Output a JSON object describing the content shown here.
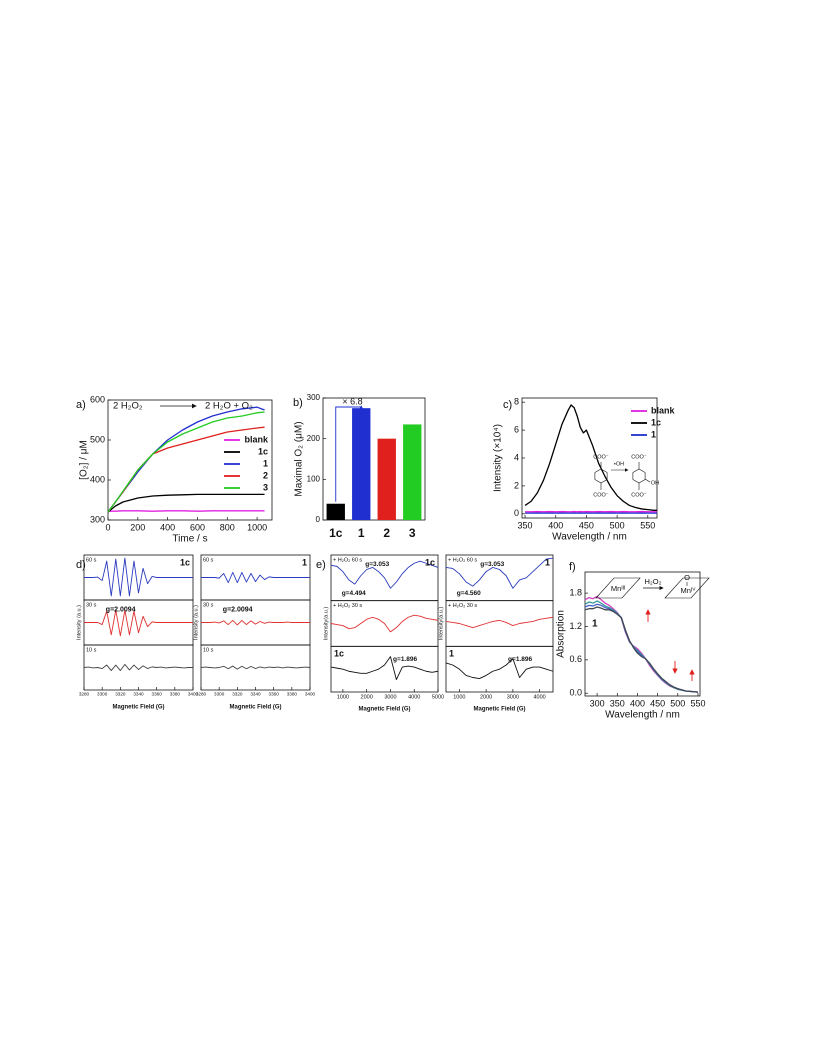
{
  "chart_data": [
    {
      "type": "line",
      "panel_label": "a)",
      "reaction_left": "2 H₂O₂",
      "reaction_right": "2 H₂O + O₂",
      "xlabel": "Time / s",
      "ylabel": "[O₂] / μM",
      "x": [
        0,
        50,
        100,
        200,
        300,
        400,
        500,
        600,
        700,
        800,
        900,
        1000,
        1050
      ],
      "xlim": [
        0,
        1100
      ],
      "xticks": [
        0,
        200,
        400,
        600,
        800,
        1000
      ],
      "ylim": [
        300,
        600
      ],
      "yticks": [
        300,
        400,
        500,
        600
      ],
      "legend": "right",
      "series": [
        {
          "name": "blank",
          "color": "#e020e0",
          "values": [
            322,
            322,
            323,
            323,
            322,
            323,
            323,
            322,
            323,
            323,
            323,
            323,
            323
          ]
        },
        {
          "name": "1c",
          "color": "#000000",
          "values": [
            320,
            335,
            345,
            355,
            360,
            362,
            363,
            364,
            364,
            364,
            364,
            364,
            364
          ]
        },
        {
          "name": "1",
          "color": "#1f2fd0",
          "values": [
            320,
            345,
            370,
            420,
            465,
            500,
            525,
            545,
            560,
            570,
            578,
            582,
            575
          ]
        },
        {
          "name": "2",
          "color": "#e0201c",
          "values": [
            320,
            345,
            370,
            425,
            465,
            480,
            490,
            500,
            510,
            520,
            525,
            530,
            532
          ]
        },
        {
          "name": "3",
          "color": "#22cc22",
          "values": [
            320,
            345,
            372,
            425,
            465,
            495,
            515,
            530,
            545,
            555,
            560,
            568,
            570
          ]
        }
      ]
    },
    {
      "type": "bar",
      "panel_label": "b)",
      "ylabel": "Maximal O₂ (μM)",
      "categories": [
        "1c",
        "1",
        "2",
        "3"
      ],
      "values": [
        40,
        275,
        200,
        235
      ],
      "colors": [
        "#000000",
        "#1f2fd0",
        "#e0201c",
        "#22cc22"
      ],
      "ylim": [
        0,
        300
      ],
      "yticks": [
        0,
        100,
        200,
        300
      ],
      "annotation": "× 6.8",
      "annotation_color": "#1f2fd0"
    },
    {
      "type": "line",
      "panel_label": "c)",
      "xlabel": "Wavelength / nm",
      "ylabel": "Intensity (×10⁴)",
      "x": [
        350,
        360,
        370,
        380,
        390,
        400,
        410,
        420,
        425,
        430,
        435,
        440,
        445,
        450,
        460,
        470,
        480,
        490,
        500,
        510,
        520,
        530,
        540,
        550,
        560,
        565
      ],
      "xlim": [
        345,
        565
      ],
      "xticks": [
        350,
        400,
        450,
        500,
        550
      ],
      "ylim": [
        -0.3,
        8.3
      ],
      "yticks": [
        0,
        2,
        4,
        6,
        8
      ],
      "legend": "upper right",
      "series": [
        {
          "name": "blank",
          "color": "#e020e0",
          "values": [
            0.15,
            0.15,
            0.16,
            0.15,
            0.16,
            0.15,
            0.16,
            0.15,
            0.15,
            0.16,
            0.15,
            0.16,
            0.15,
            0.16,
            0.15,
            0.16,
            0.15,
            0.16,
            0.15,
            0.16,
            0.15,
            0.15,
            0.16,
            0.15,
            0.15,
            0.15
          ]
        },
        {
          "name": "1c",
          "color": "#000000",
          "values": [
            0.6,
            0.9,
            1.5,
            2.4,
            3.6,
            5.0,
            6.4,
            7.4,
            7.8,
            7.6,
            7.0,
            6.2,
            5.8,
            6.0,
            4.9,
            3.6,
            2.7,
            1.9,
            1.3,
            0.9,
            0.6,
            0.45,
            0.35,
            0.3,
            0.25,
            0.25
          ]
        },
        {
          "name": "1",
          "color": "#1f2fd0",
          "values": [
            0.05,
            0.05,
            0.06,
            0.05,
            0.06,
            0.05,
            0.06,
            0.05,
            0.05,
            0.06,
            0.05,
            0.06,
            0.05,
            0.06,
            0.05,
            0.06,
            0.05,
            0.06,
            0.05,
            0.06,
            0.05,
            0.05,
            0.06,
            0.05,
            0.05,
            0.05
          ]
        }
      ],
      "inset": [
        "COO⁻",
        "COO⁻",
        "•OH",
        "COO⁻",
        "OH",
        "COO⁻"
      ]
    },
    {
      "type": "epr",
      "panel_label": "d)",
      "xlabel": "Magnetic Field (G)",
      "ylabel": "Intensity (a.u.)",
      "ylim": [
        -1,
        1
      ],
      "panels": [
        {
          "label": "1c",
          "xlim": [
            3280,
            3400
          ],
          "xticks": [
            3280,
            3300,
            3320,
            3340,
            3360,
            3380,
            3400
          ],
          "x": [
            3280,
            3285,
            3290,
            3295,
            3300,
            3305,
            3310,
            3315,
            3320,
            3325,
            3330,
            3335,
            3340,
            3345,
            3350,
            3355,
            3360,
            3365,
            3370,
            3375,
            3380,
            3385,
            3390,
            3395,
            3400
          ],
          "traces": [
            {
              "name": "60 s",
              "color": "#2a3bbf",
              "values": [
                0,
                0,
                0,
                0.02,
                -0.15,
                0.8,
                -0.9,
                0.9,
                -0.9,
                0.95,
                -0.9,
                0.8,
                -0.75,
                0.45,
                -0.3,
                0.05,
                0,
                0,
                0,
                0,
                0,
                0,
                0,
                0,
                0
              ]
            },
            {
              "name": "30 s",
              "color": "#e03030",
              "values": [
                0,
                0,
                0,
                0,
                -0.1,
                0.55,
                -0.6,
                0.6,
                -0.65,
                0.6,
                -0.6,
                0.55,
                -0.5,
                0.3,
                -0.2,
                0.03,
                0,
                0,
                0,
                0,
                0,
                0,
                0,
                0,
                0
              ],
              "annotations": [
                "g=2.0094"
              ]
            },
            {
              "name": "10 s",
              "color": "#444444",
              "values": [
                0,
                0.02,
                -0.02,
                0,
                -0.05,
                0.12,
                -0.15,
                0.12,
                -0.15,
                0.15,
                -0.12,
                0.12,
                -0.1,
                0.08,
                -0.05,
                0.03,
                0,
                0.02,
                -0.02,
                0,
                0.02,
                0,
                -0.02,
                0,
                0
              ]
            }
          ]
        },
        {
          "label": "1",
          "xlim": [
            3280,
            3400
          ],
          "xticks": [
            3280,
            3300,
            3320,
            3340,
            3360,
            3380,
            3400
          ],
          "x": [
            3280,
            3285,
            3290,
            3295,
            3300,
            3305,
            3310,
            3315,
            3320,
            3325,
            3330,
            3335,
            3340,
            3345,
            3350,
            3355,
            3360,
            3365,
            3370,
            3375,
            3380,
            3385,
            3390,
            3395,
            3400
          ],
          "traces": [
            {
              "name": "60 s",
              "color": "#2a3bbf",
              "values": [
                0,
                0,
                0,
                0,
                -0.03,
                0.2,
                -0.25,
                0.25,
                -0.25,
                0.25,
                -0.22,
                0.2,
                -0.2,
                0.12,
                -0.1,
                0.03,
                0,
                0,
                0,
                0,
                0,
                0,
                0,
                0,
                0
              ]
            },
            {
              "name": "30 s",
              "color": "#e03030",
              "values": [
                0,
                0,
                0,
                0.02,
                -0.02,
                0.08,
                -0.1,
                0.1,
                -0.12,
                0.1,
                -0.1,
                0.08,
                -0.08,
                0.05,
                -0.04,
                0.02,
                0,
                0,
                0,
                0.02,
                0,
                0,
                0,
                0,
                0
              ],
              "annotations": [
                "g=2.0094"
              ]
            },
            {
              "name": "10 s",
              "color": "#444444",
              "values": [
                0,
                0.02,
                0,
                -0.02,
                0,
                0.06,
                -0.06,
                0.07,
                -0.08,
                0.06,
                -0.06,
                0.05,
                -0.05,
                0.03,
                -0.02,
                0.02,
                0,
                0.02,
                -0.02,
                0.02,
                0,
                -0.02,
                0,
                0.02,
                0
              ]
            }
          ]
        }
      ]
    },
    {
      "type": "epr",
      "panel_label": "e)",
      "xlabel": "Magnetic Field (G)",
      "ylabel": "Intensity(a.u.)",
      "ylim": [
        -1,
        1
      ],
      "panels": [
        {
          "label": "1c",
          "xlim": [
            500,
            5000
          ],
          "xticks": [
            1000,
            2000,
            3000,
            4000,
            5000
          ],
          "x": [
            500,
            750,
            1000,
            1250,
            1500,
            1750,
            2000,
            2250,
            2500,
            2750,
            3000,
            3250,
            3500,
            3750,
            4000,
            4250,
            4500,
            4750,
            5000
          ],
          "traces": [
            {
              "name": "+ H₂O₂ 60 s",
              "color": "#2a3bbf",
              "values": [
                0.6,
                0.55,
                0.3,
                -0.1,
                -0.3,
                0.1,
                0.4,
                0.5,
                0.3,
                0.0,
                -0.5,
                -0.2,
                0.2,
                0.5,
                0.7,
                0.8,
                0.7,
                0.6,
                0.5
              ],
              "annotations": [
                "g=3.053",
                "g=4.494"
              ]
            },
            {
              "name": "+ H₂O₂ 30 s",
              "color": "#e03030",
              "values": [
                0.0,
                -0.05,
                -0.1,
                -0.25,
                -0.2,
                0.0,
                0.2,
                0.3,
                0.2,
                0.0,
                -0.4,
                -0.2,
                0.1,
                0.3,
                0.4,
                0.35,
                0.25,
                0.2,
                0.15
              ]
            },
            {
              "color": "#111111",
              "values": [
                0.1,
                0.05,
                0.0,
                -0.1,
                -0.15,
                -0.2,
                -0.2,
                -0.1,
                0.0,
                0.2,
                0.6,
                -0.5,
                0.1,
                0.15,
                0.1,
                0.0,
                -0.1,
                -0.15,
                -0.1
              ],
              "annotations": [
                "g=1.896"
              ]
            }
          ]
        },
        {
          "label": "1",
          "xlim": [
            500,
            4500
          ],
          "xticks": [
            1000,
            2000,
            3000,
            4000
          ],
          "x": [
            500,
            750,
            1000,
            1250,
            1500,
            1750,
            2000,
            2250,
            2500,
            2750,
            3000,
            3250,
            3500,
            3750,
            4000,
            4250,
            4500
          ],
          "traces": [
            {
              "name": "+ H₂O₂ 60 s",
              "color": "#2a3bbf",
              "values": [
                0.5,
                0.45,
                0.2,
                -0.2,
                -0.4,
                -0.1,
                0.3,
                0.5,
                0.4,
                0.1,
                -0.5,
                -0.1,
                0.0,
                0.3,
                0.6,
                0.9,
                0.95
              ],
              "annotations": [
                "g=3.053",
                "g=4.560"
              ]
            },
            {
              "name": "+ H₂O₂ 30 s",
              "color": "#e03030",
              "values": [
                0.1,
                0.05,
                0.0,
                -0.1,
                -0.2,
                -0.1,
                0.0,
                0.1,
                0.15,
                0.05,
                -0.1,
                0.0,
                0.05,
                0.1,
                0.2,
                0.25,
                0.3
              ]
            },
            {
              "color": "#111111",
              "values": [
                0.3,
                0.2,
                0.0,
                -0.3,
                -0.4,
                -0.45,
                -0.3,
                -0.1,
                0.0,
                0.2,
                0.5,
                -0.4,
                0.0,
                0.1,
                0.1,
                0.0,
                -0.1
              ],
              "annotations": [
                "g=1.896"
              ]
            }
          ]
        }
      ]
    },
    {
      "type": "line",
      "panel_label": "f)",
      "xlabel": "Wavelength / nm",
      "ylabel": "Absorption",
      "label": "1",
      "x": [
        270,
        280,
        290,
        300,
        310,
        320,
        330,
        340,
        350,
        360,
        370,
        380,
        390,
        400,
        410,
        420,
        430,
        440,
        450,
        460,
        470,
        480,
        490,
        500,
        520,
        550
      ],
      "xlim": [
        270,
        555
      ],
      "xticks": [
        300,
        350,
        400,
        450,
        500,
        550
      ],
      "ylim": [
        -0.05,
        2.18
      ],
      "yticks": [
        {
          "value": 0,
          "label": "0.0"
        },
        0.6,
        1.2,
        1.8
      ],
      "series": [
        {
          "color": "#d040c0",
          "values": [
            1.68,
            1.72,
            1.7,
            1.74,
            1.68,
            1.62,
            1.58,
            1.52,
            1.45,
            1.35,
            1.1,
            0.92,
            0.85,
            0.8,
            0.72,
            0.62,
            0.5,
            0.4,
            0.32,
            0.24,
            0.18,
            0.13,
            0.1,
            0.07,
            0.04,
            0.02
          ]
        },
        {
          "color": "#3a9a9a",
          "values": [
            1.6,
            1.64,
            1.62,
            1.66,
            1.62,
            1.57,
            1.54,
            1.5,
            1.44,
            1.36,
            1.12,
            0.93,
            0.84,
            0.77,
            0.7,
            0.62,
            0.52,
            0.42,
            0.33,
            0.25,
            0.19,
            0.14,
            0.1,
            0.07,
            0.04,
            0.02
          ]
        },
        {
          "color": "#4a60c8",
          "values": [
            1.55,
            1.58,
            1.57,
            1.6,
            1.58,
            1.54,
            1.52,
            1.48,
            1.43,
            1.36,
            1.13,
            0.94,
            0.83,
            0.75,
            0.68,
            0.62,
            0.53,
            0.43,
            0.34,
            0.26,
            0.2,
            0.15,
            0.11,
            0.08,
            0.04,
            0.02
          ]
        },
        {
          "color": "#404850",
          "values": [
            1.5,
            1.52,
            1.52,
            1.55,
            1.53,
            1.5,
            1.5,
            1.47,
            1.42,
            1.36,
            1.14,
            0.95,
            0.82,
            0.72,
            0.66,
            0.62,
            0.54,
            0.44,
            0.35,
            0.27,
            0.21,
            0.15,
            0.11,
            0.08,
            0.04,
            0.02
          ]
        }
      ],
      "inset": [
        "Mnᴵᴵᴵ",
        "H₂O₂",
        "O",
        "Mnᴵⱽ"
      ]
    }
  ]
}
